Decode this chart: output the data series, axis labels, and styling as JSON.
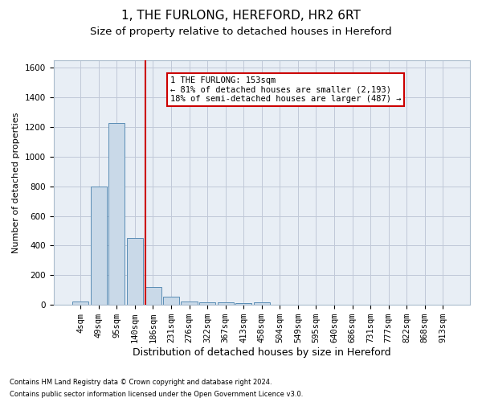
{
  "title": "1, THE FURLONG, HEREFORD, HR2 6RT",
  "subtitle": "Size of property relative to detached houses in Hereford",
  "xlabel": "Distribution of detached houses by size in Hereford",
  "ylabel": "Number of detached properties",
  "footnote1": "Contains HM Land Registry data © Crown copyright and database right 2024.",
  "footnote2": "Contains public sector information licensed under the Open Government Licence v3.0.",
  "categories": [
    "4sqm",
    "49sqm",
    "95sqm",
    "140sqm",
    "186sqm",
    "231sqm",
    "276sqm",
    "322sqm",
    "367sqm",
    "413sqm",
    "458sqm",
    "504sqm",
    "549sqm",
    "595sqm",
    "640sqm",
    "686sqm",
    "731sqm",
    "777sqm",
    "822sqm",
    "868sqm",
    "913sqm"
  ],
  "values": [
    25,
    800,
    1225,
    450,
    120,
    55,
    25,
    20,
    15,
    10,
    20,
    0,
    0,
    0,
    0,
    0,
    0,
    0,
    0,
    0,
    0
  ],
  "bar_color": "#c9d9e8",
  "bar_edge_color": "#5a8db5",
  "grid_color": "#c0c8d8",
  "background_color": "#e8eef5",
  "vline_x": 3.57,
  "vline_color": "#cc0000",
  "annotation_text": "1 THE FURLONG: 153sqm\n← 81% of detached houses are smaller (2,193)\n18% of semi-detached houses are larger (487) →",
  "annotation_box_color": "#ffffff",
  "annotation_box_edge": "#cc0000",
  "ylim": [
    0,
    1650
  ],
  "yticks": [
    0,
    200,
    400,
    600,
    800,
    1000,
    1200,
    1400,
    1600
  ],
  "title_fontsize": 11,
  "subtitle_fontsize": 9.5,
  "xlabel_fontsize": 9,
  "ylabel_fontsize": 8,
  "tick_fontsize": 7.5,
  "annotation_fontsize": 7.5,
  "footnote_fontsize": 6
}
